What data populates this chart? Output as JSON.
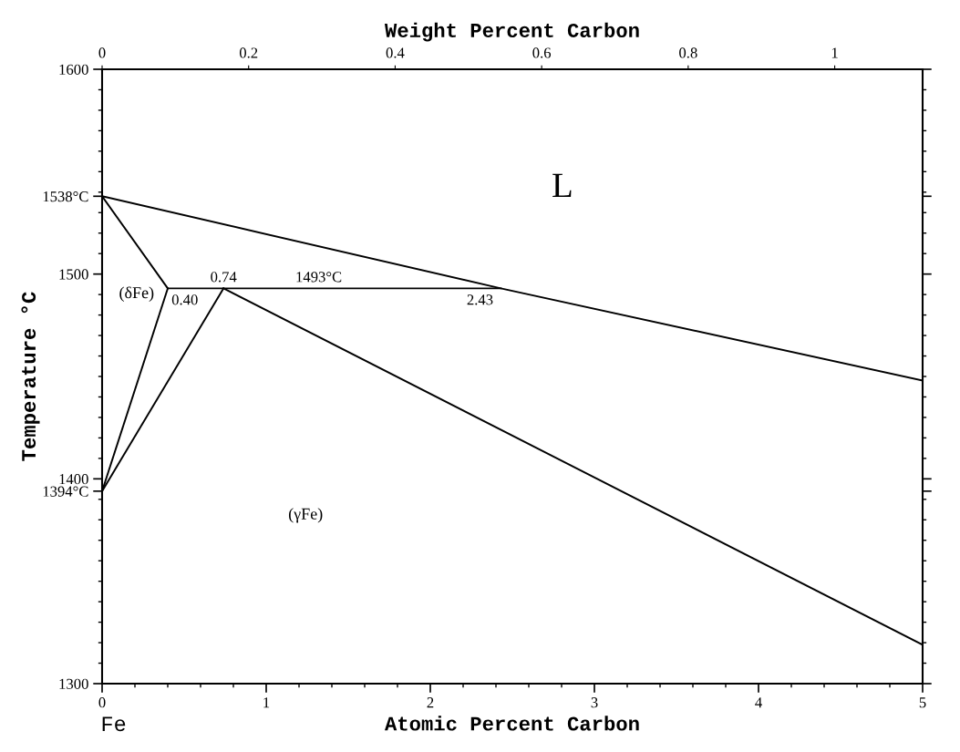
{
  "chart_data": {
    "type": "line",
    "xlabel": "Atomic Percent Carbon",
    "x2label": "Weight Percent Carbon",
    "ylabel": "Temperature °C",
    "xlim": [
      0,
      5
    ],
    "ylim": [
      1300,
      1600
    ],
    "x2lim": [
      0,
      1.12
    ],
    "xticks": [
      0,
      {
        "value": 0.2,
        "label": null
      },
      {
        "value": 0.4,
        "label": null
      },
      {
        "value": 0.6,
        "label": null
      },
      {
        "value": 0.8,
        "label": null
      },
      1,
      {
        "value": 1.2,
        "label": null
      },
      {
        "value": 1.4,
        "label": null
      },
      {
        "value": 1.6,
        "label": null
      },
      {
        "value": 1.8,
        "label": null
      },
      2,
      {
        "value": 2.2,
        "label": null
      },
      {
        "value": 2.4,
        "label": null
      },
      {
        "value": 2.6,
        "label": null
      },
      {
        "value": 2.8,
        "label": null
      },
      3,
      {
        "value": 3.2,
        "label": null
      },
      {
        "value": 3.4,
        "label": null
      },
      {
        "value": 3.6,
        "label": null
      },
      {
        "value": 3.8,
        "label": null
      },
      4,
      {
        "value": 4.2,
        "label": null
      },
      {
        "value": 4.4,
        "label": null
      },
      {
        "value": 4.6,
        "label": null
      },
      {
        "value": 4.8,
        "label": null
      },
      5
    ],
    "x2ticks": [
      0,
      0.2,
      0.4,
      0.6,
      0.8,
      1
    ],
    "yticks": [
      1300,
      {
        "value": 1310,
        "label": null
      },
      {
        "value": 1320,
        "label": null
      },
      {
        "value": 1330,
        "label": null
      },
      {
        "value": 1340,
        "label": null
      },
      {
        "value": 1350,
        "label": null
      },
      {
        "value": 1360,
        "label": null
      },
      {
        "value": 1370,
        "label": null
      },
      {
        "value": 1380,
        "label": null
      },
      {
        "value": 1390,
        "label": null
      },
      {
        "value": 1394,
        "label": "1394°C"
      },
      1400,
      {
        "value": 1410,
        "label": null
      },
      {
        "value": 1420,
        "label": null
      },
      {
        "value": 1430,
        "label": null
      },
      {
        "value": 1440,
        "label": null
      },
      {
        "value": 1450,
        "label": null
      },
      {
        "value": 1460,
        "label": null
      },
      {
        "value": 1470,
        "label": null
      },
      {
        "value": 1480,
        "label": null
      },
      {
        "value": 1490,
        "label": null
      },
      1500,
      {
        "value": 1510,
        "label": null
      },
      {
        "value": 1520,
        "label": null
      },
      {
        "value": 1530,
        "label": null
      },
      {
        "value": 1538,
        "label": "1538°C"
      },
      {
        "value": 1540,
        "label": null
      },
      {
        "value": 1550,
        "label": null
      },
      {
        "value": 1560,
        "label": null
      },
      {
        "value": 1570,
        "label": null
      },
      {
        "value": 1580,
        "label": null
      },
      {
        "value": 1590,
        "label": null
      },
      1600
    ],
    "grid": false,
    "marker": "none",
    "line_style": "solid",
    "series": [
      {
        "color": "#000000",
        "x": [
          0,
          2.43,
          5
        ],
        "values": [
          1538,
          1493,
          1448
        ]
      },
      {
        "color": "#000000",
        "x": [
          0,
          0.4
        ],
        "values": [
          1538,
          1493
        ]
      },
      {
        "color": "#000000",
        "x": [
          0,
          0.4
        ],
        "values": [
          1394,
          1493
        ]
      },
      {
        "color": "#000000",
        "x": [
          0,
          0.74
        ],
        "values": [
          1394,
          1493
        ]
      },
      {
        "color": "#000000",
        "x": [
          0.4,
          2.43
        ],
        "values": [
          1493,
          1493
        ]
      },
      {
        "color": "#000000",
        "x": [
          0.74,
          5
        ],
        "values": [
          1493,
          1319
        ]
      }
    ],
    "annotations": [
      "L",
      "(δFe)",
      "(γFe)",
      "Fe",
      {
        "text": "0.40",
        "x": 0.4,
        "y": 1493
      },
      {
        "text": "0.74",
        "x": 0.74,
        "y": 1493
      },
      {
        "text": "1493°C",
        "x": 1.32,
        "y": 1493
      },
      {
        "text": "2.43",
        "x": 2.43,
        "y": 1493
      }
    ]
  }
}
